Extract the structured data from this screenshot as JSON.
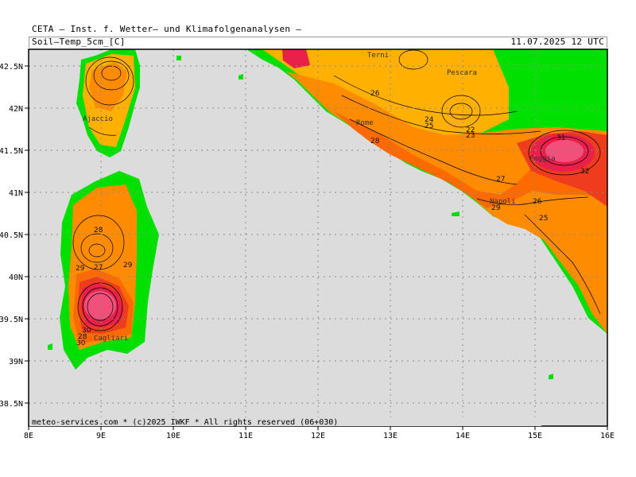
{
  "header": {
    "title": "CETA — Inst. f. Wetter— und Klimafolgenanalysen —",
    "parameter": "Soil—Temp_5cm_[C]",
    "datetime": "11.07.2025 12 UTC"
  },
  "footer": {
    "copyright": "meteo-services.com * (c)2025 IWKF * All rights reserved (06+030)"
  },
  "axes": {
    "lon_labels": [
      "8E",
      "9E",
      "10E",
      "11E",
      "12E",
      "13E",
      "14E",
      "15E",
      "16E"
    ],
    "lat_labels": [
      "42.5N",
      "42N",
      "41.5N",
      "41N",
      "40.5N",
      "40N",
      "39.5N",
      "39N",
      "38.5N"
    ]
  },
  "colors": {
    "sea": "#dcdcdc",
    "no_data_land": "#00e000",
    "temp_24": "#ffb000",
    "temp_26": "#ff8c00",
    "temp_28": "#ff6a00",
    "temp_30": "#f03c1e",
    "temp_32": "#e8204a",
    "temp_34": "#f0507a"
  },
  "cities": [
    {
      "name": "Ajaccio"
    },
    {
      "name": "Rome"
    },
    {
      "name": "Pescara"
    },
    {
      "name": "Terni"
    },
    {
      "name": "Foggia"
    },
    {
      "name": "Napoli"
    },
    {
      "name": "Cagliari"
    }
  ],
  "contour_labels": [
    "26",
    "28",
    "24",
    "25",
    "22",
    "23",
    "27",
    "31",
    "32",
    "26",
    "25",
    "29",
    "28",
    "27",
    "29",
    "29",
    "30",
    "28",
    "30"
  ]
}
